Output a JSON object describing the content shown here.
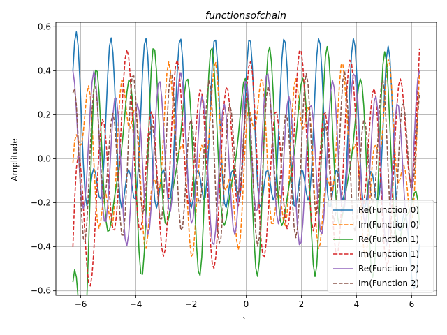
{
  "chart_data": {
    "type": "line",
    "title": "functionsofchain",
    "xlabel": "`",
    "ylabel": "Amplitude",
    "xlim": [
      -6.9,
      6.9
    ],
    "ylim": [
      -0.62,
      0.62
    ],
    "x_ticks": [
      -6,
      -4,
      -2,
      0,
      2,
      4,
      6
    ],
    "y_ticks": [
      -0.6,
      -0.4,
      -0.2,
      0.0,
      0.2,
      0.4,
      0.6
    ],
    "x_tick_labels": [
      "−6",
      "−4",
      "−2",
      "0",
      "2",
      "4",
      "6"
    ],
    "y_tick_labels": [
      "−0.6",
      "−0.4",
      "−0.2",
      "0.0",
      "0.2",
      "0.4",
      "0.6"
    ],
    "grid": true,
    "legend_position": "lower-right",
    "x_range": [
      -6.283,
      6.283
    ],
    "num_points": 200,
    "series": [
      {
        "name": "Re(Function 0)",
        "color": "#1f77b4",
        "dash": "solid",
        "model": {
          "terms": [
            {
              "amp": 0.3,
              "freq": 5,
              "phase": 1.0
            },
            {
              "amp": 0.2,
              "freq": 10,
              "phase": 0.3
            }
          ],
          "offset": 0.05
        },
        "values_start": 0.4,
        "values_end": -0.39
      },
      {
        "name": "Im(Function 0)",
        "color": "#ff7f0e",
        "dash": "dashed",
        "model": {
          "terms": [
            {
              "amp": 0.3,
              "freq": 4,
              "phase": 0.0
            },
            {
              "amp": 0.15,
              "freq": 11,
              "phase": 1.2
            }
          ],
          "offset": 0.0
        },
        "values_start": -0.02,
        "values_end": 0.4
      },
      {
        "name": "Re(Function 1)",
        "color": "#2ca02c",
        "dash": "solid",
        "model": {
          "terms": [
            {
              "amp": 0.38,
              "freq": 6,
              "phase": 2.5
            },
            {
              "amp": 0.17,
              "freq": 9,
              "phase": 0.8
            }
          ],
          "offset": 0.0
        },
        "values_start": -0.56,
        "values_end": -0.3
      },
      {
        "name": "Im(Function 1)",
        "color": "#d62728",
        "dash": "dashed",
        "model": {
          "terms": [
            {
              "amp": 0.35,
              "freq": 7,
              "phase": 0.4
            },
            {
              "amp": 0.15,
              "freq": 3,
              "phase": 2.0
            }
          ],
          "offset": 0.0
        },
        "values_start": -0.4,
        "values_end": 0.5
      },
      {
        "name": "Re(Function 2)",
        "color": "#9467bd",
        "dash": "solid",
        "model": {
          "terms": [
            {
              "amp": 0.32,
              "freq": 8,
              "phase": 1.7
            },
            {
              "amp": 0.08,
              "freq": 2,
              "phase": 0.5
            }
          ],
          "offset": 0.0
        },
        "values_start": 0.4,
        "values_end": 0.4
      },
      {
        "name": "Im(Function 2)",
        "color": "#8c564b",
        "dash": "dashed",
        "model": {
          "terms": [
            {
              "amp": 0.28,
              "freq": 9,
              "phase": 0.9
            },
            {
              "amp": 0.12,
              "freq": 5,
              "phase": 2.8
            }
          ],
          "offset": 0.0
        },
        "values_start": 0.3,
        "values_end": 0.3
      }
    ]
  }
}
